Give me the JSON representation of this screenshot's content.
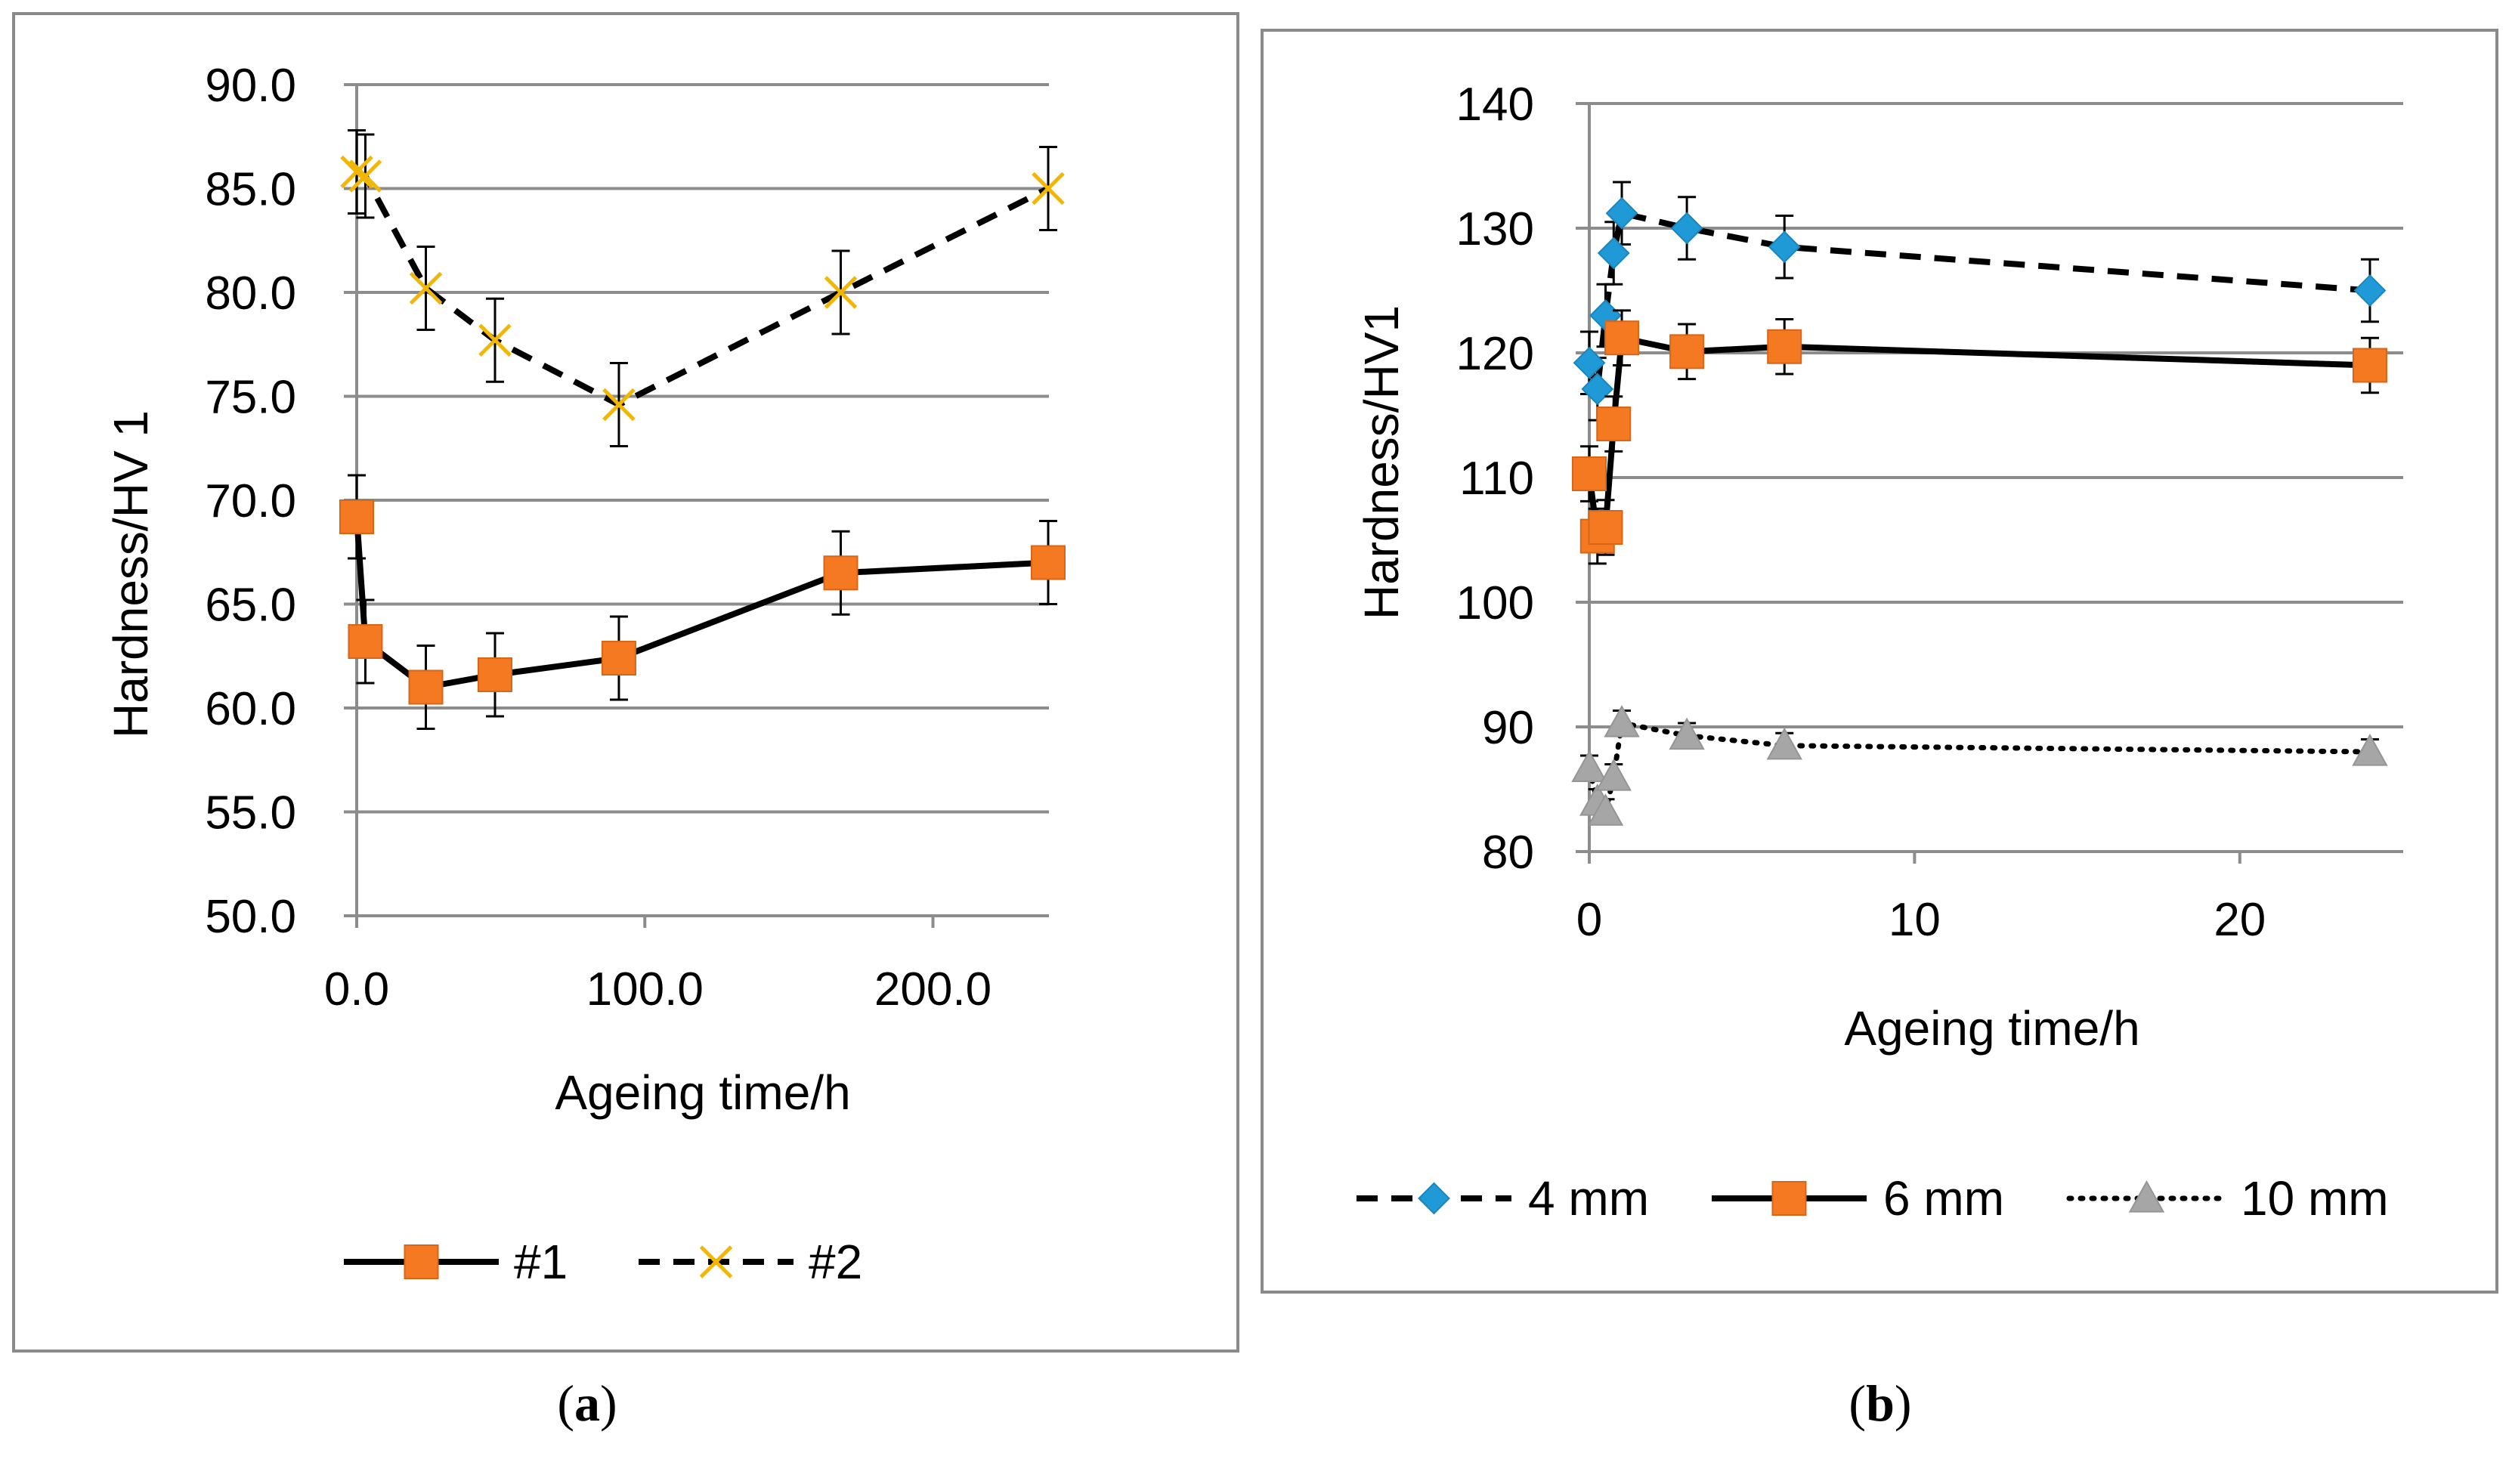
{
  "chart_data": [
    {
      "type": "line",
      "caption": "a",
      "xlabel": "Ageing time/h",
      "ylabel": "Hardness/HV 1",
      "xlim": [
        0,
        240
      ],
      "ylim": [
        50,
        90
      ],
      "xticks": [
        "0.0",
        "100.0",
        "200.0"
      ],
      "xtick_values": [
        0,
        100,
        200
      ],
      "yticks": [
        "50.0",
        "55.0",
        "60.0",
        "65.0",
        "70.0",
        "75.0",
        "80.0",
        "85.0",
        "90.0"
      ],
      "ytick_values": [
        50,
        55,
        60,
        65,
        70,
        75,
        80,
        85,
        90
      ],
      "grid": true,
      "legend_position": "bottom",
      "series": [
        {
          "name": "#1",
          "style": "solid",
          "marker": "square",
          "marker_color": "#F47920",
          "x": [
            0,
            3,
            24,
            48,
            91,
            168,
            240
          ],
          "y": [
            69.2,
            63.2,
            61.0,
            61.6,
            62.4,
            66.5,
            67.0
          ],
          "error": 2.0
        },
        {
          "name": "#2",
          "style": "dashed",
          "marker": "x",
          "marker_color": "#F2B705",
          "x": [
            0,
            3,
            24,
            48,
            91,
            168,
            240
          ],
          "y": [
            85.8,
            85.6,
            80.2,
            77.7,
            74.6,
            80.0,
            85.0
          ],
          "error": 2.0
        }
      ]
    },
    {
      "type": "line",
      "caption": "b",
      "xlabel": "Ageing time/h",
      "ylabel": "Hardness/HV1",
      "xlim": [
        0,
        25
      ],
      "ylim": [
        80,
        140
      ],
      "xticks": [
        "0",
        "10",
        "20"
      ],
      "xtick_values": [
        0,
        10,
        20
      ],
      "yticks": [
        "80",
        "90",
        "100",
        "110",
        "120",
        "130",
        "140"
      ],
      "ytick_values": [
        80,
        90,
        100,
        110,
        120,
        130,
        140
      ],
      "grid": true,
      "legend_position": "bottom",
      "series": [
        {
          "name": "4 mm",
          "style": "dashed",
          "marker": "diamond",
          "marker_color": "#1F9AD6",
          "x": [
            0,
            0.25,
            0.5,
            0.75,
            1,
            3,
            6,
            24
          ],
          "y": [
            119.2,
            117.1,
            123.0,
            128.0,
            131.2,
            130.0,
            128.5,
            125.0
          ],
          "error": 2.5
        },
        {
          "name": "6 mm",
          "style": "solid",
          "marker": "square",
          "marker_color": "#F47920",
          "x": [
            0,
            0.25,
            0.5,
            0.75,
            1,
            3,
            6,
            24
          ],
          "y": [
            110.3,
            105.3,
            106.0,
            114.3,
            121.2,
            120.1,
            120.5,
            119.0
          ],
          "error": 2.2
        },
        {
          "name": "10 mm",
          "style": "dotted",
          "marker": "triangle",
          "marker_color": "#A6A6A6",
          "x": [
            0,
            0.25,
            0.5,
            0.75,
            1,
            3,
            6,
            24
          ],
          "y": [
            86.7,
            84.0,
            83.2,
            86.0,
            90.3,
            89.3,
            88.5,
            88.0
          ],
          "error": 1.0
        }
      ]
    }
  ]
}
